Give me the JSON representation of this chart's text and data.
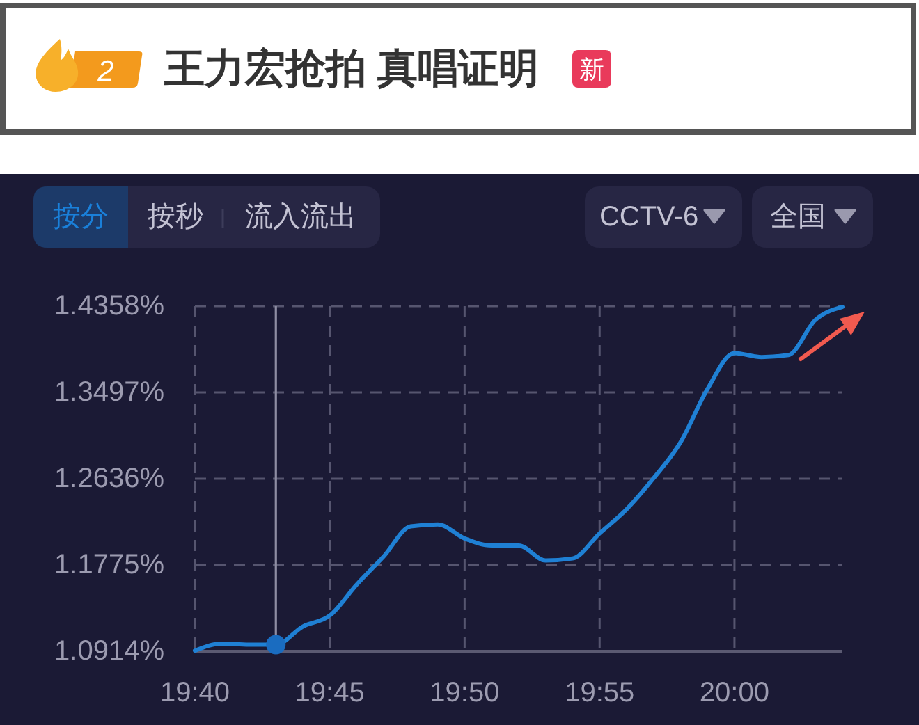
{
  "chart_data": {
    "type": "line",
    "title": "王力宏抢拍 真唱证明",
    "annotations": [
      "2",
      "新",
      "按分",
      "按秒",
      "流入流出",
      "CCTV-6",
      "全国"
    ],
    "x": [
      19.6667,
      19.6833,
      19.7,
      19.7167,
      19.7333,
      19.75,
      19.7667,
      19.7833,
      19.8,
      19.8167,
      19.8333,
      19.85,
      19.8667,
      19.8833,
      19.9,
      19.9167,
      19.9333,
      19.95,
      19.9667,
      19.9833,
      20,
      20.0167,
      20.0333,
      20.05,
      20.0667
    ],
    "series": [
      {
        "color": "#1f80d4",
        "values": [
          1.092,
          1.099,
          1.098,
          1.098,
          1.116,
          1.127,
          1.158,
          1.186,
          1.216,
          1.218,
          1.204,
          1.197,
          1.197,
          1.182,
          1.184,
          1.209,
          1.233,
          1.264,
          1.3,
          1.353,
          1.389,
          1.385,
          1.387,
          1.422,
          1.435
        ]
      },
      {
        "type": "scatter",
        "color": "#1a6cc0",
        "x": [
          19.7167
        ],
        "values": [
          1.098
        ]
      }
    ],
    "xlim": [
      19.6667,
      20.0667
    ],
    "xticks": [
      {
        "value": 19.6667,
        "label": "19:40"
      },
      {
        "value": 19.75,
        "label": "19:45"
      },
      {
        "value": 19.8333,
        "label": "19:50"
      },
      {
        "value": 19.9167,
        "label": "19:55"
      },
      {
        "value": 20,
        "label": "20:00"
      }
    ],
    "ylim": [
      1.0914,
      1.4358
    ],
    "yticks": [
      {
        "value": 1.0914,
        "label": "1.0914%"
      },
      {
        "value": 1.1775,
        "label": "1.1775%"
      },
      {
        "value": 1.2636,
        "label": "1.2636%"
      },
      {
        "value": 1.3497,
        "label": "1.3497%"
      },
      {
        "value": 1.4358,
        "label": "1.4358%"
      }
    ],
    "grid": true,
    "ref_lines": [
      {
        "axis": "x",
        "value": 19.7167,
        "color": "#8e8da3",
        "line_style": "solid"
      }
    ]
  }
}
